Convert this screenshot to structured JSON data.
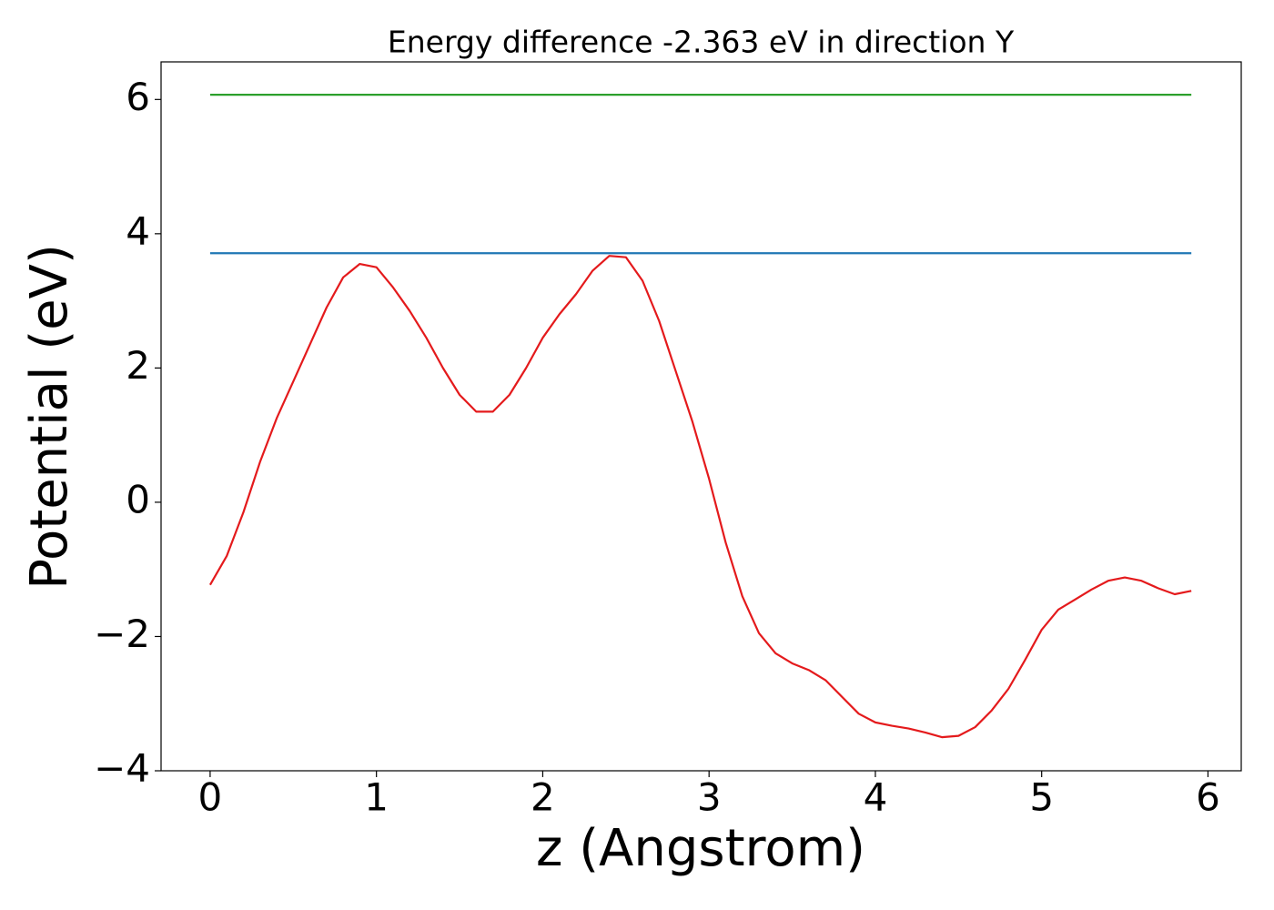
{
  "chart_data": {
    "type": "line",
    "title": "Energy difference -2.363 eV in direction Y",
    "xlabel": "z (Angstrom)",
    "ylabel": "Potential (eV)",
    "xlim": [
      -0.295,
      6.2
    ],
    "ylim": [
      -4,
      6.56
    ],
    "xticks": [
      0,
      1,
      2,
      3,
      4,
      5,
      6
    ],
    "yticks": [
      {
        "value": -4,
        "label": "−4"
      },
      {
        "value": -2,
        "label": "−2"
      },
      0,
      2,
      4,
      6
    ],
    "series": [
      {
        "color": "#2ca02c",
        "x": [
          0,
          5.9
        ],
        "values": [
          6.07,
          6.07
        ]
      },
      {
        "color": "#1f77b4",
        "x": [
          0,
          5.9
        ],
        "values": [
          3.71,
          3.71
        ]
      },
      {
        "color": "#e41a1c",
        "x": [
          0,
          0.1,
          0.2,
          0.3,
          0.4,
          0.5,
          0.6,
          0.7,
          0.8,
          0.9,
          1.0,
          1.1,
          1.2,
          1.3,
          1.4,
          1.5,
          1.6,
          1.7,
          1.8,
          1.9,
          2.0,
          2.1,
          2.2,
          2.3,
          2.4,
          2.5,
          2.6,
          2.7,
          2.8,
          2.9,
          3.0,
          3.1,
          3.2,
          3.3,
          3.4,
          3.5,
          3.6,
          3.7,
          3.8,
          3.9,
          4.0,
          4.1,
          4.2,
          4.3,
          4.4,
          4.5,
          4.6,
          4.7,
          4.8,
          4.9,
          5.0,
          5.1,
          5.2,
          5.3,
          5.4,
          5.5,
          5.6,
          5.7,
          5.8,
          5.9
        ],
        "values": [
          -1.23,
          -0.8,
          -0.15,
          0.6,
          1.25,
          1.8,
          2.35,
          2.9,
          3.35,
          3.55,
          3.5,
          3.2,
          2.85,
          2.45,
          2.0,
          1.6,
          1.35,
          1.35,
          1.6,
          2.0,
          2.45,
          2.8,
          3.1,
          3.45,
          3.67,
          3.65,
          3.3,
          2.7,
          1.95,
          1.2,
          0.35,
          -0.6,
          -1.4,
          -1.95,
          -2.25,
          -2.4,
          -2.5,
          -2.65,
          -2.9,
          -3.15,
          -3.28,
          -3.33,
          -3.37,
          -3.43,
          -3.5,
          -3.48,
          -3.35,
          -3.1,
          -2.78,
          -2.35,
          -1.9,
          -1.6,
          -1.45,
          -1.3,
          -1.17,
          -1.12,
          -1.17,
          -1.28,
          -1.37,
          -1.32
        ]
      }
    ]
  }
}
